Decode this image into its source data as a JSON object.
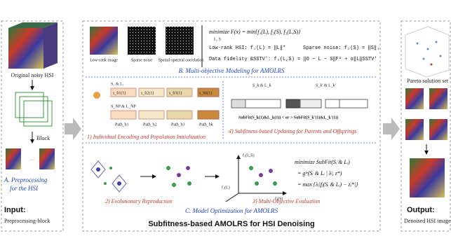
{
  "input": {
    "image_label": "Original noisy HSI",
    "block_label": "Block",
    "step_title": [
      "A. Preprocessing",
      "for the HSI"
    ],
    "heading": "Input:",
    "subheading": "Preprocessing-block"
  },
  "modeling": {
    "image_labels": [
      "Low-rank image",
      "Sparse noise",
      "Spatial-spectral correlation"
    ],
    "objective": "minimize F(x) = min{f₁(L), f₂(S), f₃(L,S)}",
    "objective_sub": "L, S",
    "low_rank": "Low-rank HSI: f₁(L) = ‖L‖*",
    "sparse": "Sparse noise: f₂(S) = ‖S‖₁",
    "fidelity": "Data fidelity &SSTV': f₃(L,S) = ‖O − L − S‖F² + α‖L‖SSTV'",
    "title": "B. Multi-objective Modeling for AMOLRS"
  },
  "optimization": {
    "title": "C. Model Optimization for AMOLRS",
    "steps": [
      "1) Individual Encoding and Population Initialization",
      "2) Evolutionary Reproduction",
      "3) Multi-Objective Evaluation",
      "4) Subfitness-based Updating for Parents and Offsprings"
    ],
    "encoding": {
      "top_label": "S₁ & L₁",
      "bottom_label": "S_NP & L_NP",
      "cells": [
        "s_b1(1)",
        "s_b2(1)",
        "s_b3(1)",
        "s_bk(1)"
      ],
      "paths": [
        "Path_b1",
        "Path_b2",
        "Path_b3",
        "Path_bk"
      ]
    },
    "updating": {
      "labels": [
        "S_k & L_k",
        "S_k' & L_k'"
      ],
      "rule": "SubFit(S_k(1)&L_k(1)) < or > SubFit(S_k'(1)&L_k'(1))"
    },
    "evaluation": {
      "lines": [
        "minimize SubFit(Sᵢ & Lᵢ)",
        "= gᵗᵉ(Sᵢ & Lᵢ | λʲ, z*)",
        "= max {λⱼ|fⱼ(Sᵢ & Lᵢ) − zⱼ*|}"
      ],
      "axes": [
        "f₃(L,S)",
        "f₁(L)",
        "f₂(S)"
      ]
    }
  },
  "footer": {
    "title": "Subfitness-based AMOLRS for HSI Denoising"
  },
  "output": {
    "pareto_label": "Pareto solution set",
    "heading": "Output:",
    "subheading": "Denoised HSI image"
  }
}
